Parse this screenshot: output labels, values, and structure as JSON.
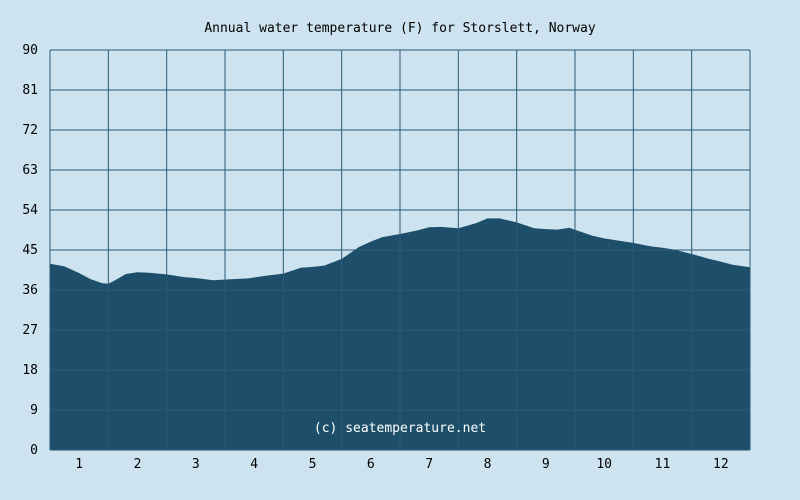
{
  "chart_data": {
    "type": "area",
    "title": "Annual water temperature (F) for Storslett, Norway",
    "xlabel": "",
    "ylabel": "",
    "ylim": [
      0,
      90
    ],
    "xlim": [
      0.5,
      12.5
    ],
    "grid": true,
    "x_ticks": [
      "1",
      "2",
      "3",
      "4",
      "5",
      "6",
      "7",
      "8",
      "9",
      "10",
      "11",
      "12"
    ],
    "y_ticks": [
      "0",
      "9",
      "18",
      "27",
      "36",
      "45",
      "54",
      "63",
      "72",
      "81",
      "90"
    ],
    "series": [
      {
        "x": [
          0.5,
          0.75,
          1.0,
          1.2,
          1.4,
          1.5,
          1.6,
          1.8,
          2.0,
          2.2,
          2.5,
          2.8,
          3.0,
          3.3,
          3.6,
          3.9,
          4.2,
          4.5,
          4.8,
          5.0,
          5.2,
          5.5,
          5.8,
          6.0,
          6.2,
          6.5,
          6.8,
          7.0,
          7.2,
          7.5,
          7.8,
          8.0,
          8.2,
          8.5,
          8.8,
          9.0,
          9.2,
          9.4,
          9.6,
          9.8,
          10.0,
          10.2,
          10.5,
          10.8,
          11.0,
          11.2,
          11.5,
          11.8,
          12.0,
          12.2,
          12.5
        ],
        "values": [
          41.9,
          41.3,
          39.8,
          38.4,
          37.5,
          37.4,
          38.1,
          39.6,
          40.0,
          39.9,
          39.5,
          38.9,
          38.7,
          38.2,
          38.4,
          38.6,
          39.2,
          39.7,
          41.0,
          41.2,
          41.5,
          43.0,
          45.7,
          46.9,
          47.9,
          48.6,
          49.4,
          50.1,
          50.2,
          49.9,
          51.0,
          52.1,
          52.1,
          51.2,
          49.9,
          49.7,
          49.6,
          50.0,
          49.1,
          48.2,
          47.6,
          47.2,
          46.6,
          45.8,
          45.5,
          45.1,
          44.1,
          43.0,
          42.4,
          41.7,
          41.1
        ],
        "color": "#1d4f6a"
      }
    ],
    "watermark": "(c) seatemperature.net",
    "colors": {
      "background": "#cde3ef",
      "area": "#1d4f6a",
      "grid": "#2c5a76",
      "text": "#000000",
      "watermark": "#ffffff"
    }
  }
}
